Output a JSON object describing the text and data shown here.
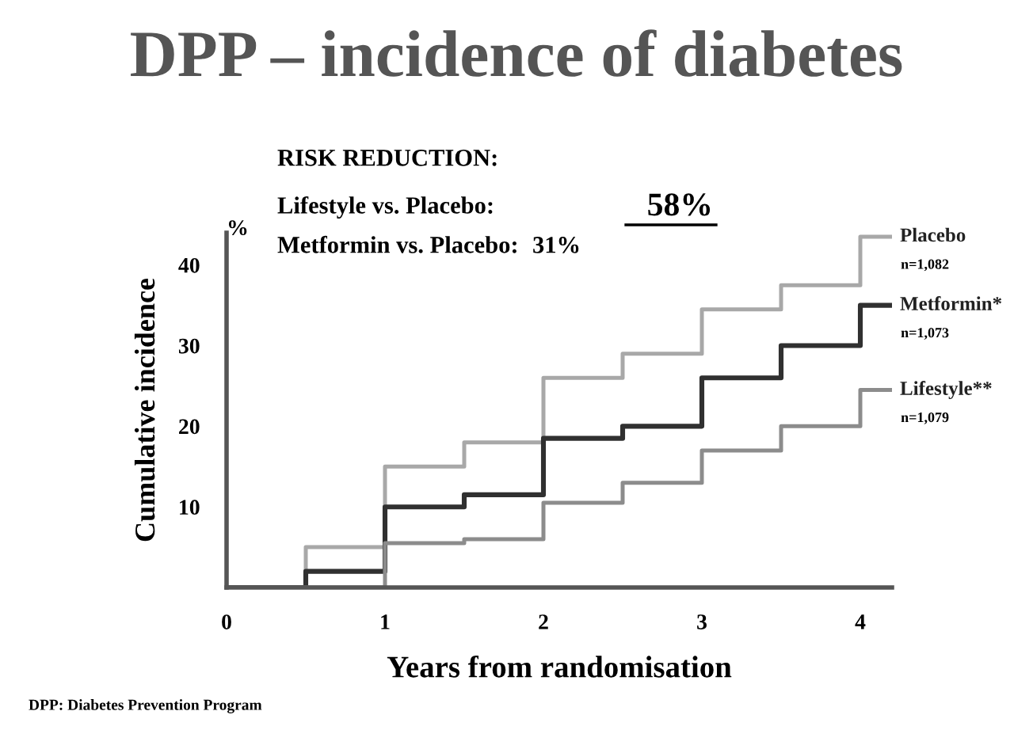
{
  "chart_data": {
    "type": "step",
    "title": "DPP – incidence of diabetes",
    "xlabel": "Years from randomisation",
    "ylabel": "Cumulative incidence",
    "x": [
      0,
      0.5,
      1,
      1.5,
      2,
      2.5,
      3,
      3.5,
      4,
      4.2
    ],
    "series": [
      {
        "name": "Placebo",
        "color": "#a8a8a8",
        "values": [
          0,
          5,
          15,
          18,
          26,
          29,
          34.5,
          37.5,
          43.5,
          43.5
        ]
      },
      {
        "name": "Metformin*",
        "color": "#303030",
        "values": [
          0,
          2,
          10,
          11.5,
          18.5,
          20,
          26,
          30,
          35,
          35
        ]
      },
      {
        "name": "Lifestyle**",
        "color": "#8c8c8c",
        "values": [
          0,
          0,
          5.5,
          6,
          10.5,
          13,
          17,
          20,
          24.5,
          24.5
        ]
      }
    ],
    "xlim": [
      0,
      4.2
    ],
    "ylim": [
      0,
      44
    ],
    "xticks": [
      0,
      1,
      2,
      3,
      4
    ],
    "yticks": [
      10,
      20,
      30,
      40
    ],
    "grid": false,
    "legend": false,
    "marker": "none",
    "line_style": "solid",
    "annotations": [
      "RISK REDUCTION:",
      "Lifestyle vs. Placebo:",
      "58%",
      "Metformin vs. Placebo:",
      "31%",
      "%",
      "n=1,082",
      "n=1,073",
      "n=1,079",
      "DPP: Diabetes Prevention Program"
    ]
  }
}
